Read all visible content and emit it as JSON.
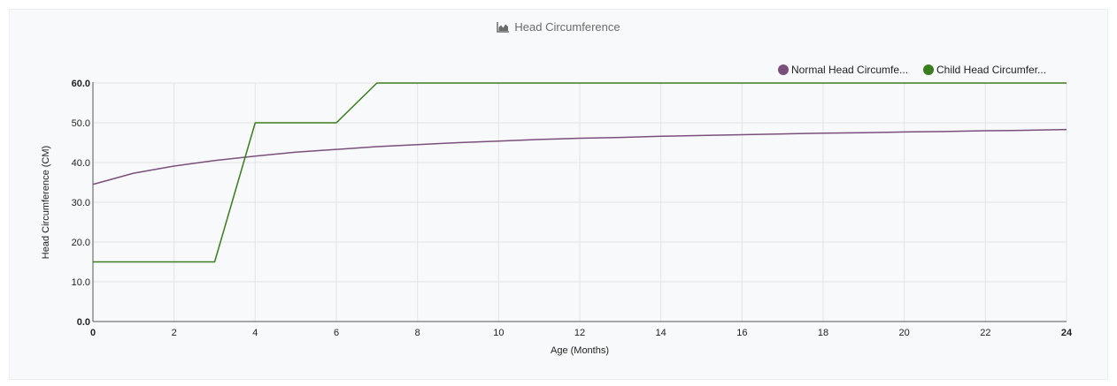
{
  "chart_data": {
    "type": "line",
    "title": "Head Circumference",
    "title_icon": "area-chart-icon",
    "xlabel": "Age (Months)",
    "ylabel": "Head Circumference (CM)",
    "xlim": [
      0,
      24
    ],
    "ylim": [
      0,
      60
    ],
    "x_ticks": [
      "0",
      "2",
      "4",
      "6",
      "8",
      "10",
      "12",
      "14",
      "16",
      "18",
      "20",
      "22",
      "24"
    ],
    "y_ticks": [
      "0.0",
      "10.0",
      "20.0",
      "30.0",
      "40.0",
      "50.0",
      "60.0"
    ],
    "grid": true,
    "legend_position": "top-right",
    "series": [
      {
        "name": "Normal Head Circumfe...",
        "color": "#7b4f7c",
        "x": [
          0,
          1,
          2,
          3,
          4,
          5,
          6,
          7,
          8,
          9,
          10,
          11,
          12,
          13,
          14,
          15,
          16,
          17,
          18,
          19,
          20,
          21,
          22,
          23,
          24
        ],
        "y": [
          34.5,
          37.3,
          39.1,
          40.5,
          41.6,
          42.6,
          43.3,
          44.0,
          44.5,
          45.0,
          45.4,
          45.8,
          46.1,
          46.3,
          46.6,
          46.8,
          47.0,
          47.2,
          47.4,
          47.5,
          47.7,
          47.8,
          48.0,
          48.1,
          48.3
        ]
      },
      {
        "name": "Child Head Circumfer...",
        "color": "#3a7d1e",
        "x": [
          0,
          3,
          4,
          6,
          7,
          24
        ],
        "y": [
          15,
          15,
          50,
          50,
          60,
          60
        ]
      }
    ]
  }
}
